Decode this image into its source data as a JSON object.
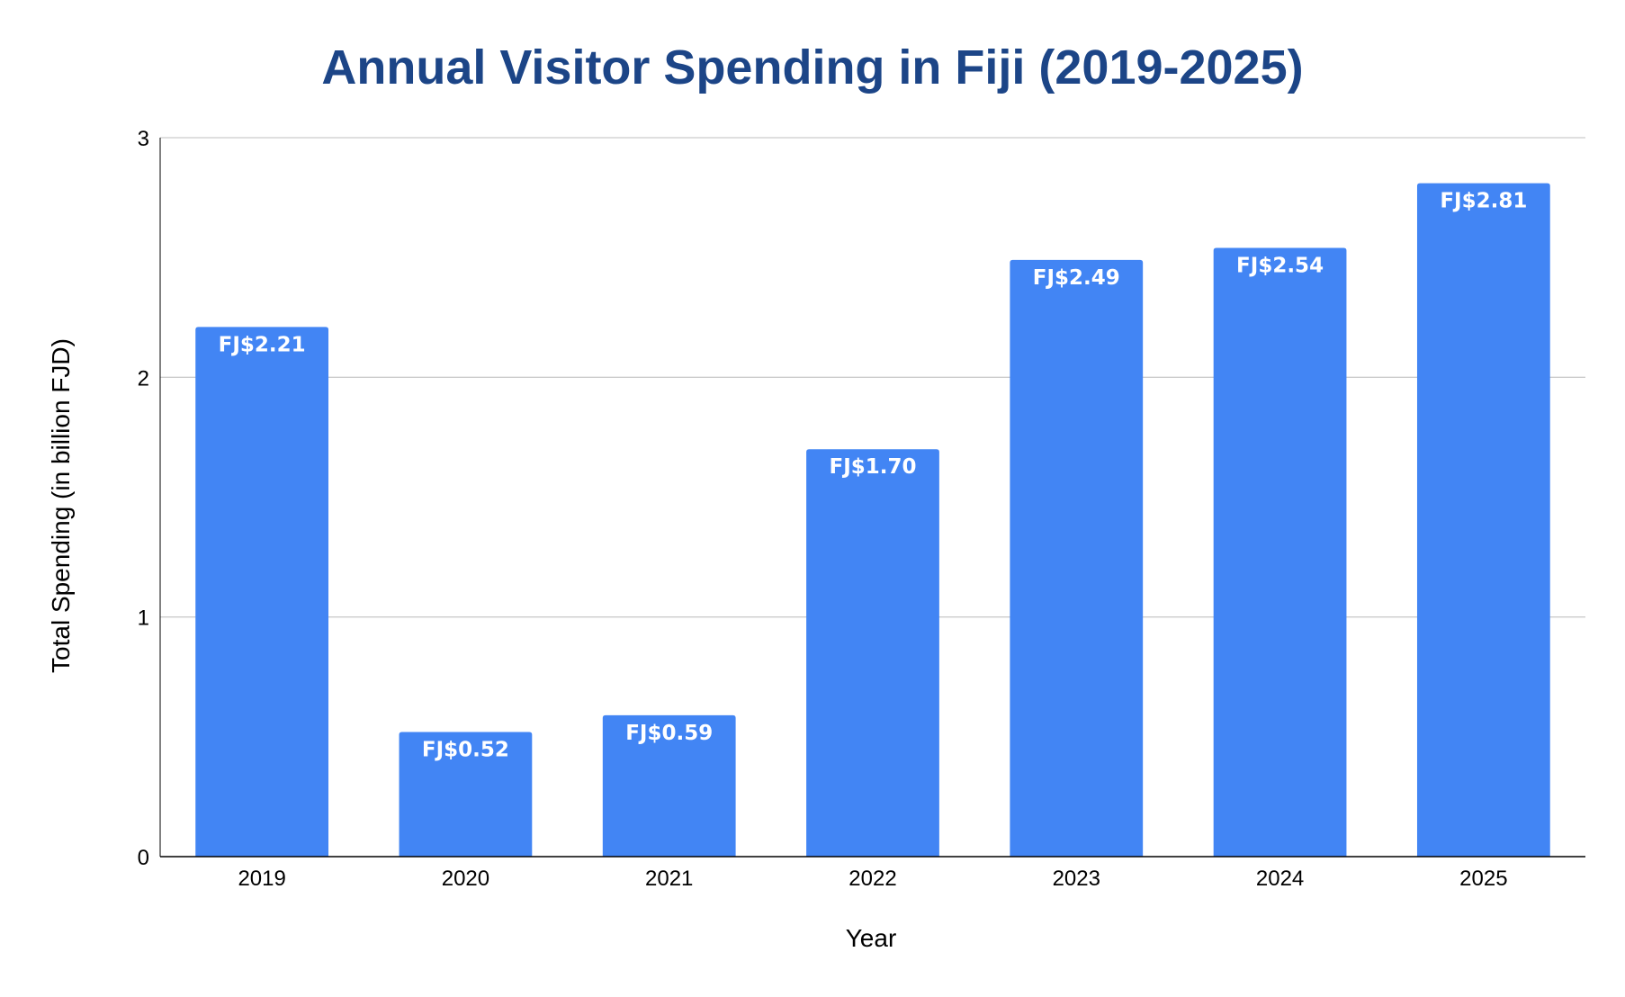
{
  "chart_data": {
    "type": "bar",
    "title": "Annual Visitor Spending in Fiji (2019-2025)",
    "xlabel": "Year",
    "ylabel": "Total Spending (in billion FJD)",
    "categories": [
      "2019",
      "2020",
      "2021",
      "2022",
      "2023",
      "2024",
      "2025"
    ],
    "values": [
      2.21,
      0.52,
      0.59,
      1.7,
      2.49,
      2.54,
      2.81
    ],
    "data_labels": [
      "FJ$2.21",
      "FJ$0.52",
      "FJ$0.59",
      "FJ$1.70",
      "FJ$2.49",
      "FJ$2.54",
      "FJ$2.81"
    ],
    "ylim": [
      0,
      3
    ],
    "yticks": [
      "0",
      "1",
      "2",
      "3"
    ],
    "grid": true,
    "legend": "none",
    "colors": {
      "bar": "#4285f4",
      "title": "#1c4587",
      "grid": "#cccccc",
      "axis": "#000000",
      "label": "#ffffff"
    }
  }
}
